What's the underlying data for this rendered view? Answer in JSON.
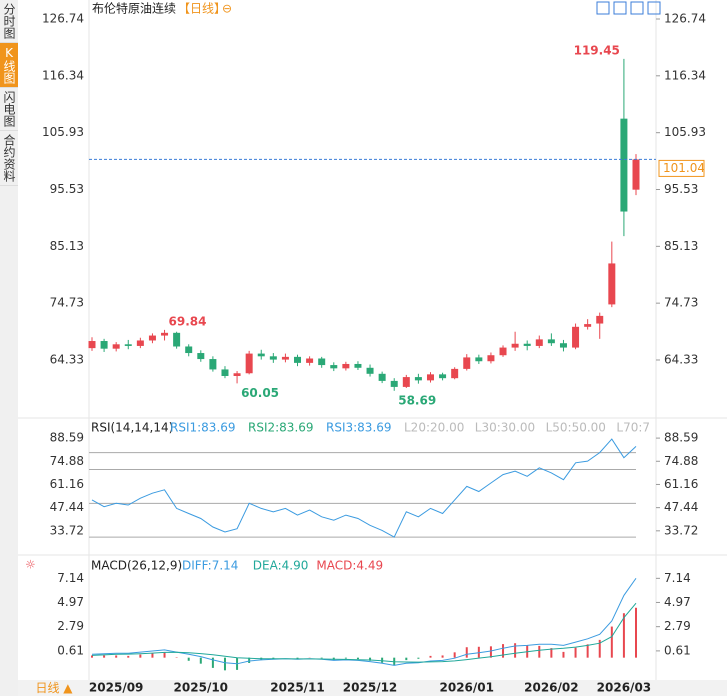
{
  "ui": {
    "tabs": [
      "分时图",
      "K线图",
      "闪电图",
      "合约资料"
    ],
    "timeframe": "日线 ▲"
  },
  "chart_data": [
    {
      "type": "candlestick",
      "title": "布伦特原油连续",
      "period": "【日线】",
      "icon": "⊖",
      "up_color": "#e8474f",
      "down_color": "#2aa876",
      "categories": [
        null,
        null,
        "2025/09",
        null,
        null,
        null,
        null,
        null,
        null,
        "2025/10",
        null,
        null,
        null,
        null,
        null,
        null,
        null,
        "2025/11",
        null,
        null,
        null,
        null,
        null,
        "2025/12",
        null,
        null,
        null,
        null,
        null,
        null,
        null,
        "2026/01",
        null,
        null,
        null,
        null,
        null,
        null,
        "2026/02",
        null,
        null,
        null,
        null,
        null,
        "2026/03",
        null
      ],
      "open": [
        66.5,
        67.8,
        66.4,
        67.2,
        66.9,
        67.9,
        68.8,
        69.3,
        66.8,
        65.6,
        64.5,
        62.6,
        61.4,
        61.9,
        65.5,
        65.0,
        64.4,
        64.9,
        63.8,
        64.6,
        63.4,
        62.8,
        63.6,
        62.9,
        61.8,
        60.5,
        59.4,
        61.2,
        60.6,
        61.7,
        61.0,
        62.7,
        64.8,
        64.1,
        65.2,
        66.6,
        67.3,
        66.9,
        68.1,
        67.4,
        66.6,
        70.4,
        71.0,
        74.5,
        108.5,
        95.5
      ],
      "high": [
        68.5,
        68.2,
        67.6,
        68.0,
        68.4,
        69.2,
        69.84,
        69.5,
        67.2,
        66.1,
        65.0,
        63.2,
        62.3,
        66.0,
        66.2,
        65.6,
        65.5,
        65.3,
        65.0,
        64.9,
        63.9,
        64.0,
        64.1,
        63.5,
        62.2,
        61.0,
        61.6,
        61.8,
        62.1,
        62.0,
        63.0,
        65.4,
        65.3,
        65.7,
        67.0,
        69.5,
        67.9,
        68.8,
        69.2,
        68.0,
        71.0,
        71.8,
        73.0,
        86.0,
        119.45,
        102.0
      ],
      "low": [
        66.0,
        65.8,
        65.9,
        66.3,
        66.5,
        67.4,
        67.9,
        66.4,
        65.0,
        64.0,
        62.2,
        61.0,
        60.05,
        61.7,
        64.4,
        63.8,
        63.9,
        63.2,
        63.3,
        62.9,
        62.3,
        62.4,
        62.5,
        61.3,
        60.1,
        58.69,
        59.2,
        60.0,
        60.2,
        60.6,
        60.8,
        62.4,
        63.6,
        63.7,
        64.9,
        66.0,
        66.1,
        66.5,
        66.9,
        65.9,
        66.3,
        69.9,
        68.2,
        74.0,
        87.0,
        94.5
      ],
      "close": [
        67.8,
        66.4,
        67.2,
        66.9,
        67.9,
        68.8,
        69.3,
        66.8,
        65.6,
        64.5,
        62.6,
        61.4,
        61.9,
        65.5,
        65.0,
        64.4,
        64.9,
        63.8,
        64.6,
        63.4,
        62.8,
        63.6,
        62.9,
        61.8,
        60.5,
        59.4,
        61.2,
        60.6,
        61.7,
        61.0,
        62.7,
        64.8,
        64.1,
        65.2,
        66.6,
        67.3,
        66.9,
        68.1,
        67.4,
        66.6,
        70.4,
        70.9,
        72.4,
        82.0,
        91.5,
        101.04
      ],
      "ylim": [
        54.26,
        129.3
      ],
      "yticks": [
        126.74,
        116.34,
        105.93,
        95.53,
        85.13,
        74.73,
        64.33
      ],
      "price_line_color": "#3b7dd8"
    },
    {
      "type": "line",
      "title": "RSI(14,14,14)",
      "legend": [
        "RSI1:83.69",
        "RSI2:83.69",
        "RSI3:83.69",
        "L20:20.00",
        "L30:30.00",
        "L50:50.00",
        "L70:7"
      ],
      "legend_colors": [
        "#3b9be0",
        "#2aa876",
        "#3b9be0",
        "#bbb",
        "#bbb",
        "#bbb",
        "#bbb"
      ],
      "series": [
        {
          "name": "RSI1",
          "color": "#3b9be0",
          "values": [
            52,
            48,
            50,
            49,
            53,
            56,
            58,
            47,
            44,
            41,
            36,
            33,
            35,
            50,
            47,
            45,
            47,
            43,
            46,
            42,
            40,
            43,
            41,
            37,
            34,
            30,
            45,
            42,
            47,
            44,
            52,
            60,
            57,
            62,
            67,
            69,
            66,
            71,
            68,
            64,
            74,
            75,
            80,
            88,
            77,
            83.69
          ]
        }
      ],
      "levels": [
        80,
        70,
        50,
        30
      ],
      "ylim": [
        20.6,
        99.3
      ],
      "yticks": [
        88.59,
        74.88,
        61.16,
        47.44,
        33.72
      ]
    },
    {
      "type": "macd",
      "title": "MACD(26,12,9)",
      "legend": [
        "DIFF:7.14",
        "DEA:4.90",
        "MACD:4.49"
      ],
      "legend_colors": [
        "#3b9be0",
        "#20a89a",
        "#e8474f"
      ],
      "series": [
        {
          "name": "DIFF",
          "color": "#3b9be0",
          "values": [
            0.3,
            0.35,
            0.4,
            0.4,
            0.5,
            0.6,
            0.7,
            0.5,
            0.3,
            0.1,
            -0.2,
            -0.45,
            -0.55,
            -0.3,
            -0.2,
            -0.15,
            -0.1,
            -0.15,
            -0.1,
            -0.15,
            -0.25,
            -0.2,
            -0.25,
            -0.35,
            -0.5,
            -0.7,
            -0.5,
            -0.45,
            -0.3,
            -0.25,
            -0.05,
            0.3,
            0.45,
            0.6,
            0.85,
            1.05,
            1.1,
            1.2,
            1.2,
            1.1,
            1.4,
            1.7,
            2.1,
            3.3,
            5.6,
            7.14
          ]
        },
        {
          "name": "DEA",
          "color": "#20a89a",
          "values": [
            0.2,
            0.25,
            0.3,
            0.32,
            0.36,
            0.41,
            0.47,
            0.48,
            0.44,
            0.37,
            0.26,
            0.12,
            0.0,
            -0.06,
            -0.09,
            -0.1,
            -0.1,
            -0.11,
            -0.11,
            -0.12,
            -0.15,
            -0.16,
            -0.18,
            -0.21,
            -0.27,
            -0.36,
            -0.39,
            -0.4,
            -0.38,
            -0.35,
            -0.29,
            -0.17,
            -0.04,
            0.09,
            0.24,
            0.4,
            0.54,
            0.67,
            0.77,
            0.84,
            0.95,
            1.1,
            1.3,
            1.9,
            3.6,
            4.9
          ]
        }
      ],
      "histogram": [
        0.2,
        0.2,
        0.2,
        0.16,
        0.28,
        0.38,
        0.46,
        0.04,
        -0.28,
        -0.54,
        -0.92,
        -1.14,
        -1.1,
        -0.48,
        -0.22,
        -0.1,
        0.0,
        -0.08,
        0.02,
        -0.06,
        -0.2,
        -0.08,
        -0.14,
        -0.28,
        -0.46,
        -0.68,
        -0.22,
        -0.1,
        0.16,
        0.2,
        0.48,
        0.94,
        0.98,
        1.02,
        1.22,
        1.3,
        1.12,
        1.06,
        0.86,
        0.52,
        0.9,
        1.2,
        1.6,
        2.8,
        4.0,
        4.49
      ],
      "ylim": [
        -1.83,
        8.79
      ],
      "yticks": [
        7.14,
        4.97,
        2.79,
        0.61
      ]
    }
  ]
}
